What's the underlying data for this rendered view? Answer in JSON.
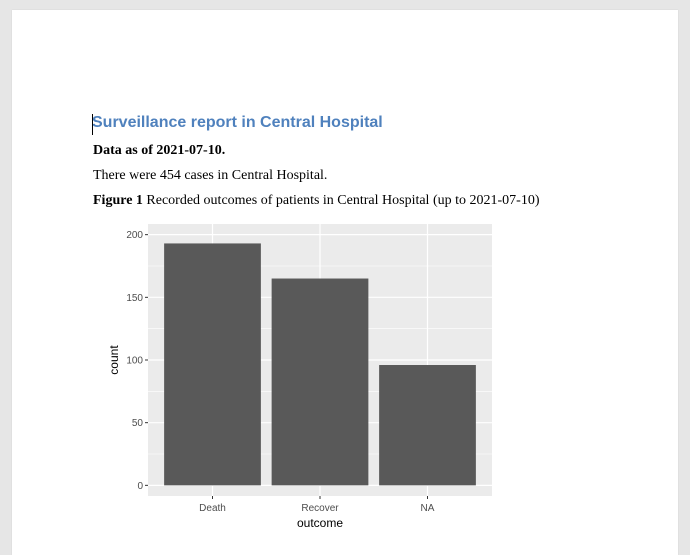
{
  "document": {
    "title": "Surveillance report in Central Hospital",
    "data_as_of": "Data as of 2021-07-10.",
    "case_summary": "There were 454 cases in Central Hospital.",
    "figure_label": "Figure 1",
    "figure_caption": "Recorded outcomes of patients in Central Hospital (up to 2021-07-10)"
  },
  "chart_data": {
    "type": "bar",
    "categories": [
      "Death",
      "Recover",
      "NA"
    ],
    "values": [
      193,
      165,
      96
    ],
    "xlabel": "outcome",
    "ylabel": "count",
    "ylim": [
      0,
      200
    ],
    "yticks": [
      0,
      50,
      100,
      150,
      200
    ],
    "grid": true,
    "bar_color": "#595959",
    "panel_color": "#ebebeb"
  }
}
